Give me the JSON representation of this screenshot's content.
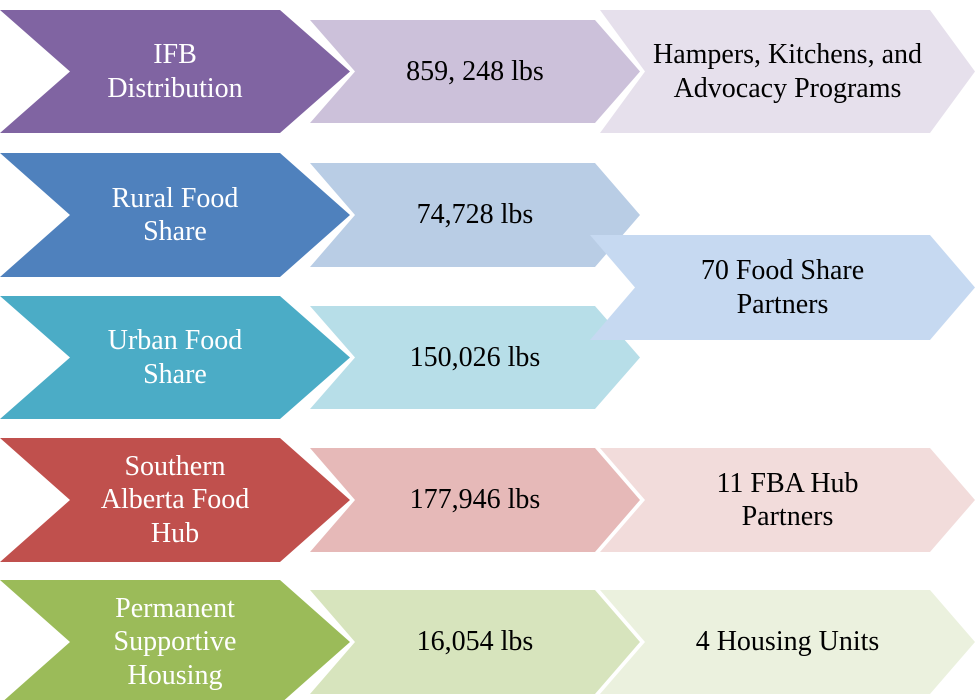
{
  "rows": [
    {
      "program": "IFB Distribution",
      "amount": "859, 248 lbs",
      "outcome": "Hampers, Kitchens, and Advocacy Programs"
    },
    {
      "program": "Rural Food Share",
      "amount": "74,728 lbs"
    },
    {
      "program": "Urban Food Share",
      "amount": "150,026 lbs"
    },
    {
      "program": "Southern Alberta Food Hub",
      "amount": "177,946 lbs",
      "outcome": "11 FBA Hub Partners"
    },
    {
      "program": "Permanent Supportive Housing",
      "amount": "16,054 lbs",
      "outcome": "4 Housing Units"
    }
  ],
  "shared_outcome": "70 Food Share Partners"
}
